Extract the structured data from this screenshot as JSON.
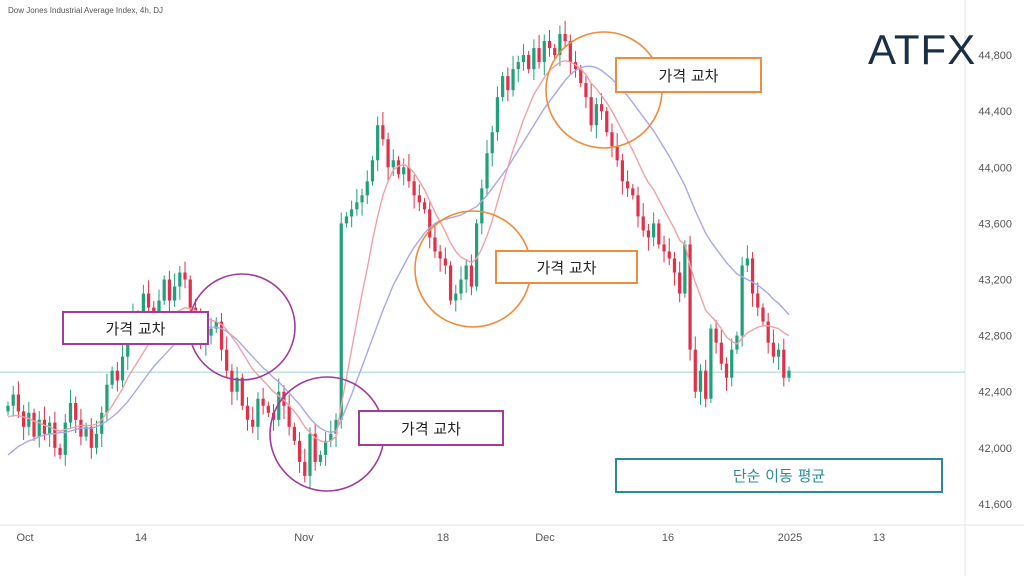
{
  "header": {
    "ticker": "Dow Jones Industrial Average Index, 4h, DJ"
  },
  "brand": {
    "logo": "ATFX"
  },
  "annotations": {
    "cross_1": "가격 교차",
    "cross_2": "가격 교차",
    "cross_3": "가격 교차",
    "cross_4": "가격 교차",
    "sma_label": "단순 이동 평균"
  },
  "colors": {
    "up": "#22a07a",
    "down": "#e0304a",
    "fast_ma": "#f0a1a7",
    "slow_ma": "#a9a6ee",
    "purple": "#a23b9b",
    "orange": "#ef8b3a",
    "teal": "#2a8a9a"
  },
  "chart_data": {
    "type": "candlestick",
    "title": "Dow Jones Industrial Average Index, 4h, DJ",
    "x_ticks": [
      "Oct",
      "14",
      "Nov",
      "18",
      "Dec",
      "16",
      "2025",
      "13"
    ],
    "y_ticks": [
      41600,
      42000,
      42400,
      42800,
      43200,
      43600,
      44000,
      44400,
      44800
    ],
    "ylim": [
      41450,
      45050
    ],
    "current_price_line": 42540,
    "series": [
      {
        "name": "candles",
        "close": [
          42300,
          42380,
          42260,
          42150,
          42250,
          42080,
          42200,
          42100,
          42180,
          42000,
          41950,
          42180,
          42320,
          42200,
          42080,
          42150,
          42000,
          42100,
          42250,
          42450,
          42550,
          42480,
          42650,
          42800,
          42950,
          42850,
          43100,
          43000,
          42900,
          43050,
          43200,
          43050,
          43150,
          43250,
          43200,
          43000,
          42900,
          42750,
          42800,
          42850,
          42900,
          42700,
          42550,
          42400,
          42500,
          42300,
          42200,
          42150,
          42350,
          42300,
          42250,
          42200,
          42400,
          42300,
          42150,
          42050,
          41900,
          41800,
          42100,
          41900,
          41950,
          42050,
          42100,
          42200,
          43600,
          43650,
          43700,
          43750,
          43800,
          43900,
          44050,
          44300,
          44200,
          44000,
          44050,
          43950,
          44000,
          43900,
          43800,
          43750,
          43700,
          43500,
          43400,
          43350,
          43300,
          43050,
          43100,
          43200,
          43300,
          43150,
          43600,
          43850,
          44100,
          44250,
          44500,
          44650,
          44550,
          44700,
          44750,
          44800,
          44700,
          44850,
          44750,
          44900,
          44850,
          44800,
          44950,
          44900,
          44750,
          44700,
          44600,
          44500,
          44300,
          44450,
          44400,
          44250,
          44150,
          44050,
          43900,
          43850,
          43800,
          43650,
          43550,
          43500,
          43600,
          43450,
          43400,
          43350,
          43250,
          43100,
          43450,
          42700,
          42400,
          42550,
          42350,
          42850,
          42750,
          42600,
          42500,
          42700,
          42800,
          43300,
          43350,
          43100,
          43000,
          42900,
          42750,
          42650,
          42700,
          42500,
          42550
        ],
        "fast_ma": [
          42220,
          42230,
          42230,
          42220,
          42210,
          42190,
          42180,
          42160,
          42150,
          42130,
          42120,
          42130,
          42140,
          42150,
          42160,
          42160,
          42160,
          42170,
          42200,
          42250,
          42300,
          42360,
          42420,
          42500,
          42560,
          42620,
          42680,
          42740,
          42790,
          42840,
          42880,
          42920,
          42960,
          42980,
          43000,
          42990,
          42980,
          42950,
          42920,
          42910,
          42900,
          42880,
          42840,
          42790,
          42740,
          42680,
          42620,
          42560,
          42520,
          42480,
          42440,
          42400,
          42370,
          42340,
          42300,
          42260,
          42210,
          42150,
          42110,
          42070,
          42050,
          42040,
          42050,
          42080,
          42300,
          42500,
          42700,
          42900,
          43100,
          43280,
          43480,
          43650,
          43800,
          43900,
          43980,
          44010,
          44020,
          44000,
          43960,
          43900,
          43840,
          43760,
          43680,
          43610,
          43540,
          43460,
          43400,
          43360,
          43340,
          43320,
          43350,
          43420,
          43510,
          43620,
          43750,
          43880,
          44000,
          44120,
          44230,
          44340,
          44430,
          44520,
          44580,
          44640,
          44690,
          44720,
          44750,
          44760,
          44750,
          44730,
          44700,
          44660,
          44600,
          44560,
          44510,
          44460,
          44400,
          44330,
          44260,
          44190,
          44120,
          44040,
          43960,
          43890,
          43840,
          43770,
          43700,
          43630,
          43560,
          43480,
          43450,
          43300,
          43180,
          43080,
          42980,
          42940,
          42900,
          42850,
          42790,
          42760,
          42740,
          42780,
          42820,
          42840,
          42860,
          42870,
          42870,
          42860,
          42850,
          42820,
          42800
        ],
        "slow_ma": [
          41950,
          41980,
          42010,
          42030,
          42050,
          42060,
          42080,
          42090,
          42100,
          42100,
          42110,
          42110,
          42120,
          42130,
          42140,
          42140,
          42140,
          42150,
          42170,
          42190,
          42220,
          42250,
          42290,
          42330,
          42380,
          42430,
          42480,
          42530,
          42580,
          42620,
          42660,
          42700,
          42740,
          42770,
          42800,
          42820,
          42840,
          42850,
          42860,
          42860,
          42860,
          42850,
          42830,
          42800,
          42770,
          42730,
          42690,
          42650,
          42610,
          42570,
          42540,
          42500,
          42470,
          42430,
          42390,
          42350,
          42310,
          42260,
          42210,
          42170,
          42140,
          42120,
          42110,
          42120,
          42200,
          42290,
          42380,
          42480,
          42580,
          42680,
          42780,
          42880,
          42980,
          43070,
          43160,
          43230,
          43300,
          43370,
          43430,
          43480,
          43530,
          43570,
          43600,
          43620,
          43630,
          43640,
          43650,
          43660,
          43680,
          43700,
          43720,
          43760,
          43800,
          43850,
          43900,
          43950,
          44000,
          44060,
          44120,
          44180,
          44240,
          44300,
          44360,
          44420,
          44470,
          44520,
          44570,
          44620,
          44660,
          44690,
          44710,
          44720,
          44720,
          44710,
          44690,
          44660,
          44630,
          44590,
          44550,
          44510,
          44460,
          44410,
          44360,
          44310,
          44260,
          44200,
          44140,
          44080,
          44010,
          43940,
          43870,
          43780,
          43690,
          43610,
          43530,
          43470,
          43420,
          43370,
          43320,
          43280,
          43240,
          43220,
          43200,
          43180,
          43160,
          43130,
          43100,
          43060,
          43030,
          42990,
          42950
        ]
      }
    ]
  }
}
